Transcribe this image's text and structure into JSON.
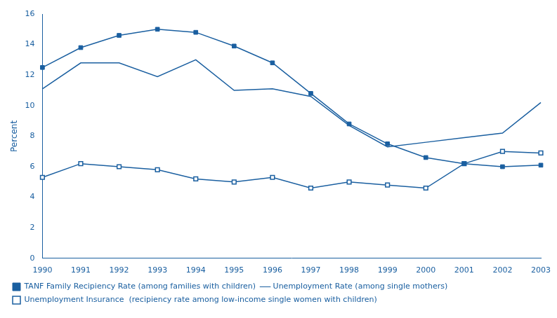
{
  "chart_data": {
    "type": "line",
    "x": [
      1990,
      1991,
      1992,
      1993,
      1994,
      1995,
      1996,
      1997,
      1998,
      1999,
      2000,
      2001,
      2002,
      2003
    ],
    "xlim": [
      1990,
      2003
    ],
    "xticks": [
      1990,
      1991,
      1992,
      1993,
      1994,
      1995,
      1996,
      1997,
      1998,
      1999,
      2000,
      2001,
      2002,
      2003
    ],
    "ylabel": "Percent",
    "ylim": [
      0,
      16
    ],
    "yticks": [
      0,
      2,
      4,
      6,
      8,
      10,
      12,
      14,
      16
    ],
    "grid": false,
    "legend": "bottom",
    "series": [
      {
        "name": "TANF Family Recipiency Rate (among families with children)",
        "color": "#1a5fa0",
        "marker": "square",
        "values": [
          12.5,
          13.8,
          14.6,
          15.0,
          14.8,
          13.9,
          12.8,
          10.8,
          8.8,
          7.5,
          6.6,
          6.2,
          6.0,
          6.1
        ]
      },
      {
        "name": "Unemployment Rate (among single mothers)",
        "color": "#1a5fa0",
        "marker": "none",
        "values": [
          11.1,
          12.8,
          12.8,
          11.9,
          13.0,
          11.0,
          11.1,
          10.6,
          8.7,
          7.3,
          7.6,
          7.9,
          8.2,
          10.2
        ]
      },
      {
        "name": "Unemployment Insurance  (recipiency rate among low-income single women with children)",
        "color": "#1a5fa0",
        "marker": "open_square",
        "values": [
          5.3,
          6.2,
          6.0,
          5.8,
          5.2,
          5.0,
          5.3,
          4.6,
          5.0,
          4.8,
          4.6,
          6.2,
          7.0,
          6.9
        ]
      }
    ]
  }
}
